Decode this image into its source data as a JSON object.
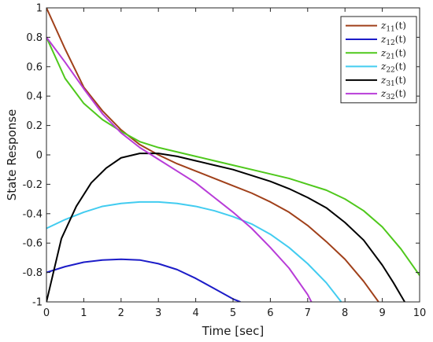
{
  "chart_data": {
    "type": "line",
    "xlabel": "Time [sec]",
    "ylabel": "State Response",
    "xlim": [
      0,
      10
    ],
    "ylim": [
      -1,
      1
    ],
    "xticks": [
      0,
      1,
      2,
      3,
      4,
      5,
      6,
      7,
      8,
      9,
      10
    ],
    "yticks": [
      -1,
      -0.8,
      -0.6,
      -0.4,
      -0.2,
      0,
      0.2,
      0.4,
      0.6,
      0.8,
      1
    ],
    "ytick_labels": [
      "-1",
      "-0.8",
      "-0.6",
      "-0.4",
      "-0.2",
      "0",
      "0.2",
      "0.4",
      "0.6",
      "0.8",
      "1"
    ],
    "grid": false,
    "legend_position": "top-right",
    "series": [
      {
        "name": "z11(t)",
        "base": "z",
        "sub": "11",
        "arg": "(t)",
        "color": "#a0401a",
        "x": [
          0,
          0.5,
          1,
          1.5,
          2,
          2.5,
          3,
          3.5,
          4,
          4.5,
          5,
          5.5,
          6,
          6.5,
          7,
          7.5,
          8,
          8.5,
          8.9
        ],
        "y": [
          1.0,
          0.72,
          0.46,
          0.3,
          0.17,
          0.07,
          0.0,
          -0.06,
          -0.11,
          -0.16,
          -0.21,
          -0.26,
          -0.32,
          -0.39,
          -0.48,
          -0.59,
          -0.71,
          -0.86,
          -1.0
        ]
      },
      {
        "name": "z12(t)",
        "base": "z",
        "sub": "12",
        "arg": "(t)",
        "color": "#1c1cc8",
        "x": [
          0,
          0.5,
          1,
          1.5,
          2,
          2.5,
          3,
          3.5,
          4,
          4.5,
          5,
          5.2
        ],
        "y": [
          -0.8,
          -0.76,
          -0.73,
          -0.715,
          -0.71,
          -0.715,
          -0.74,
          -0.78,
          -0.84,
          -0.91,
          -0.98,
          -1.0
        ]
      },
      {
        "name": "z21(t)",
        "base": "z",
        "sub": "21",
        "arg": "(t)",
        "color": "#4fc81c",
        "x": [
          0,
          0.5,
          1,
          1.5,
          2,
          2.5,
          3,
          3.5,
          4,
          4.5,
          5,
          5.5,
          6,
          6.5,
          7,
          7.5,
          8,
          8.5,
          9,
          9.5,
          10
        ],
        "y": [
          0.8,
          0.52,
          0.35,
          0.24,
          0.16,
          0.09,
          0.05,
          0.02,
          -0.01,
          -0.04,
          -0.07,
          -0.1,
          -0.13,
          -0.16,
          -0.2,
          -0.24,
          -0.3,
          -0.38,
          -0.49,
          -0.64,
          -0.82
        ]
      },
      {
        "name": "z22(t)",
        "base": "z",
        "sub": "22",
        "arg": "(t)",
        "color": "#42ccf0",
        "x": [
          0,
          0.5,
          1,
          1.5,
          2,
          2.5,
          3,
          3.5,
          4,
          4.5,
          5,
          5.5,
          6,
          6.5,
          7,
          7.5,
          7.9
        ],
        "y": [
          -0.5,
          -0.44,
          -0.39,
          -0.35,
          -0.33,
          -0.32,
          -0.32,
          -0.33,
          -0.35,
          -0.38,
          -0.42,
          -0.47,
          -0.54,
          -0.63,
          -0.74,
          -0.87,
          -1.0
        ]
      },
      {
        "name": "z31(t)",
        "base": "z",
        "sub": "31",
        "arg": "(t)",
        "color": "#000000",
        "x": [
          0,
          0.4,
          0.8,
          1.2,
          1.6,
          2,
          2.5,
          3,
          3.5,
          4,
          4.5,
          5,
          5.5,
          6,
          6.5,
          7,
          7.5,
          8,
          8.5,
          9,
          9.3,
          9.6
        ],
        "y": [
          -1.0,
          -0.57,
          -0.35,
          -0.19,
          -0.09,
          -0.02,
          0.01,
          0.01,
          -0.01,
          -0.04,
          -0.07,
          -0.1,
          -0.14,
          -0.18,
          -0.23,
          -0.29,
          -0.36,
          -0.46,
          -0.58,
          -0.75,
          -0.87,
          -1.0
        ]
      },
      {
        "name": "z32(t)",
        "base": "z",
        "sub": "32",
        "arg": "(t)",
        "color": "#b83cd8",
        "x": [
          0,
          0.5,
          1,
          1.5,
          2,
          2.5,
          3,
          3.5,
          4,
          4.5,
          5,
          5.5,
          6,
          6.5,
          7,
          7.1
        ],
        "y": [
          0.8,
          0.63,
          0.45,
          0.28,
          0.15,
          0.05,
          -0.03,
          -0.11,
          -0.19,
          -0.29,
          -0.39,
          -0.5,
          -0.63,
          -0.77,
          -0.95,
          -1.0
        ]
      }
    ]
  }
}
